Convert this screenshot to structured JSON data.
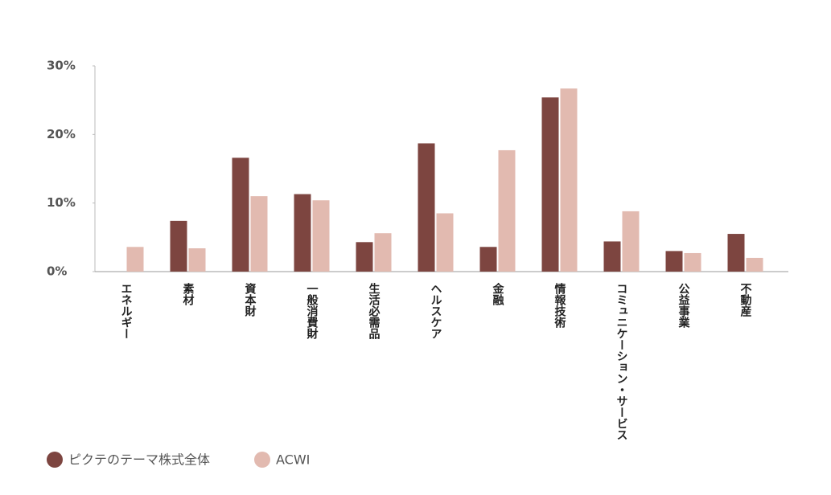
{
  "chart_data": {
    "type": "bar",
    "categories": [
      "エネルギー",
      "素材",
      "資本財",
      "一般消費財",
      "生活必需品",
      "ヘルスケア",
      "金融",
      "情報技術",
      "コミュニケーション・サービス",
      "公益事業",
      "不動産"
    ],
    "series": [
      {
        "name": "ピクテのテーマ株式全体",
        "color": "#7d4540",
        "values": [
          0,
          7.4,
          16.6,
          11.3,
          4.3,
          18.7,
          3.6,
          25.4,
          4.4,
          3.0,
          5.5
        ]
      },
      {
        "name": "ACWI",
        "color": "#e2bab0",
        "values": [
          3.6,
          3.4,
          11.0,
          10.4,
          5.6,
          8.5,
          17.7,
          26.7,
          8.8,
          2.7,
          2.0
        ]
      }
    ],
    "ylim": [
      0,
      30
    ],
    "yticks": [
      {
        "value": 0,
        "label": "0%"
      },
      {
        "value": 10,
        "label": "10%"
      },
      {
        "value": 20,
        "label": "20%"
      },
      {
        "value": 30,
        "label": "30%"
      }
    ]
  }
}
